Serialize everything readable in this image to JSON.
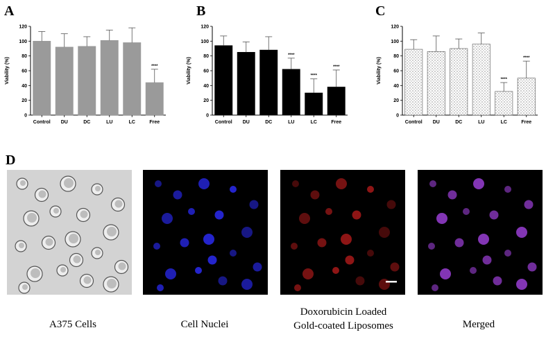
{
  "panels": {
    "a": "A",
    "b": "B",
    "c": "C",
    "d": "D"
  },
  "colors": {
    "gray_bar": "#9a9a9a",
    "black_bar": "#000000",
    "nuclei": "#2a2af0",
    "red": "#c81e1e",
    "merged": "#9b3fd6"
  },
  "chart_data": [
    {
      "type": "bar",
      "panel": "A",
      "categories": [
        "Control",
        "DU",
        "DC",
        "LU",
        "LC",
        "Free"
      ],
      "values": [
        100,
        92,
        93,
        101,
        98,
        44
      ],
      "errors": [
        13,
        18,
        13,
        14,
        20,
        18
      ],
      "significance": [
        "",
        "",
        "",
        "",
        "",
        "****"
      ],
      "ylabel": "Viability (%)",
      "ylim": [
        0,
        120
      ],
      "yticks": [
        0,
        20,
        40,
        60,
        80,
        100,
        120
      ],
      "fill": "gray"
    },
    {
      "type": "bar",
      "panel": "B",
      "categories": [
        "Control",
        "DU",
        "DC",
        "LU",
        "LC",
        "Free"
      ],
      "values": [
        94,
        85,
        88,
        62,
        30,
        38
      ],
      "errors": [
        13,
        14,
        18,
        15,
        19,
        23
      ],
      "significance": [
        "",
        "",
        "",
        "****",
        "****",
        "****"
      ],
      "ylabel": "Viability (%)",
      "ylim": [
        0,
        120
      ],
      "yticks": [
        0,
        20,
        40,
        60,
        80,
        100,
        120
      ],
      "fill": "black"
    },
    {
      "type": "bar",
      "panel": "C",
      "categories": [
        "Control",
        "DU",
        "DC",
        "LU",
        "LC",
        "Free"
      ],
      "values": [
        89,
        86,
        90,
        96,
        32,
        50
      ],
      "errors": [
        13,
        21,
        13,
        15,
        12,
        23
      ],
      "significance": [
        "",
        "",
        "",
        "",
        "****",
        "****"
      ],
      "ylabel": "Viability (%)",
      "ylim": [
        0,
        120
      ],
      "yticks": [
        0,
        20,
        40,
        60,
        80,
        100,
        120
      ],
      "fill": "pattern"
    }
  ],
  "images": [
    {
      "id": "a375",
      "caption": "A375 Cells"
    },
    {
      "id": "nuclei",
      "caption": "Cell Nuclei"
    },
    {
      "id": "dox",
      "caption_line1": "Doxorubicin Loaded",
      "caption_line2": "Gold-coated Liposomes"
    },
    {
      "id": "merged",
      "caption": "Merged"
    }
  ]
}
